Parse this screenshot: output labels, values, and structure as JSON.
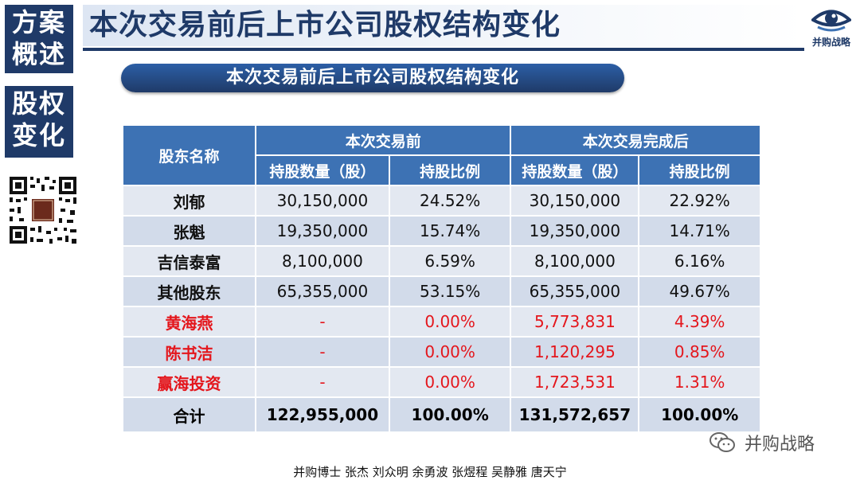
{
  "sidebar": {
    "top_lines": [
      "方案",
      "概述"
    ],
    "bottom_lines": [
      "股权",
      "变化"
    ]
  },
  "header": {
    "title": "本次交易前后上市公司股权结构变化",
    "logo_text": "并购战略",
    "logo_icon": "eye-logo-icon"
  },
  "subtitle_pill": "本次交易前后上市公司股权结构变化",
  "table": {
    "header_group_col": "股东名称",
    "groups": [
      "本次交易前",
      "本次交易完成后"
    ],
    "sub_headers": [
      "持股数量（股）",
      "持股比例",
      "持股数量（股）",
      "持股比例"
    ],
    "rows": [
      {
        "name": "刘郁",
        "before_qty": "30,150,000",
        "before_pct": "24.52%",
        "after_qty": "30,150,000",
        "after_pct": "22.92%",
        "highlight": false
      },
      {
        "name": "张魁",
        "before_qty": "19,350,000",
        "before_pct": "15.74%",
        "after_qty": "19,350,000",
        "after_pct": "14.71%",
        "highlight": false
      },
      {
        "name": "吉信泰富",
        "before_qty": "8,100,000",
        "before_pct": "6.59%",
        "after_qty": "8,100,000",
        "after_pct": "6.16%",
        "highlight": false
      },
      {
        "name": "其他股东",
        "before_qty": "65,355,000",
        "before_pct": "53.15%",
        "after_qty": "65,355,000",
        "after_pct": "49.67%",
        "highlight": false
      },
      {
        "name": "黄海燕",
        "before_qty": "-",
        "before_pct": "0.00%",
        "after_qty": "5,773,831",
        "after_pct": "4.39%",
        "highlight": true
      },
      {
        "name": "陈书洁",
        "before_qty": "-",
        "before_pct": "0.00%",
        "after_qty": "1,120,295",
        "after_pct": "0.85%",
        "highlight": true
      },
      {
        "name": "赢海投资",
        "before_qty": "-",
        "before_pct": "0.00%",
        "after_qty": "1,723,531",
        "after_pct": "1.31%",
        "highlight": true
      }
    ],
    "total": {
      "name": "合计",
      "before_qty": "122,955,000",
      "before_pct": "100.00%",
      "after_qty": "131,572,657",
      "after_pct": "100.00%"
    }
  },
  "watermark": "并购战略",
  "credits": "并购博士 张杰 刘众明 余勇波 张煜程 吴静雅 唐天宁",
  "colors": {
    "navy": "#1f3a68",
    "header_blue": "#3d72b4",
    "row_light": "#e3e8f1",
    "row_alt": "#d2dbea",
    "red": "#e4161c"
  }
}
